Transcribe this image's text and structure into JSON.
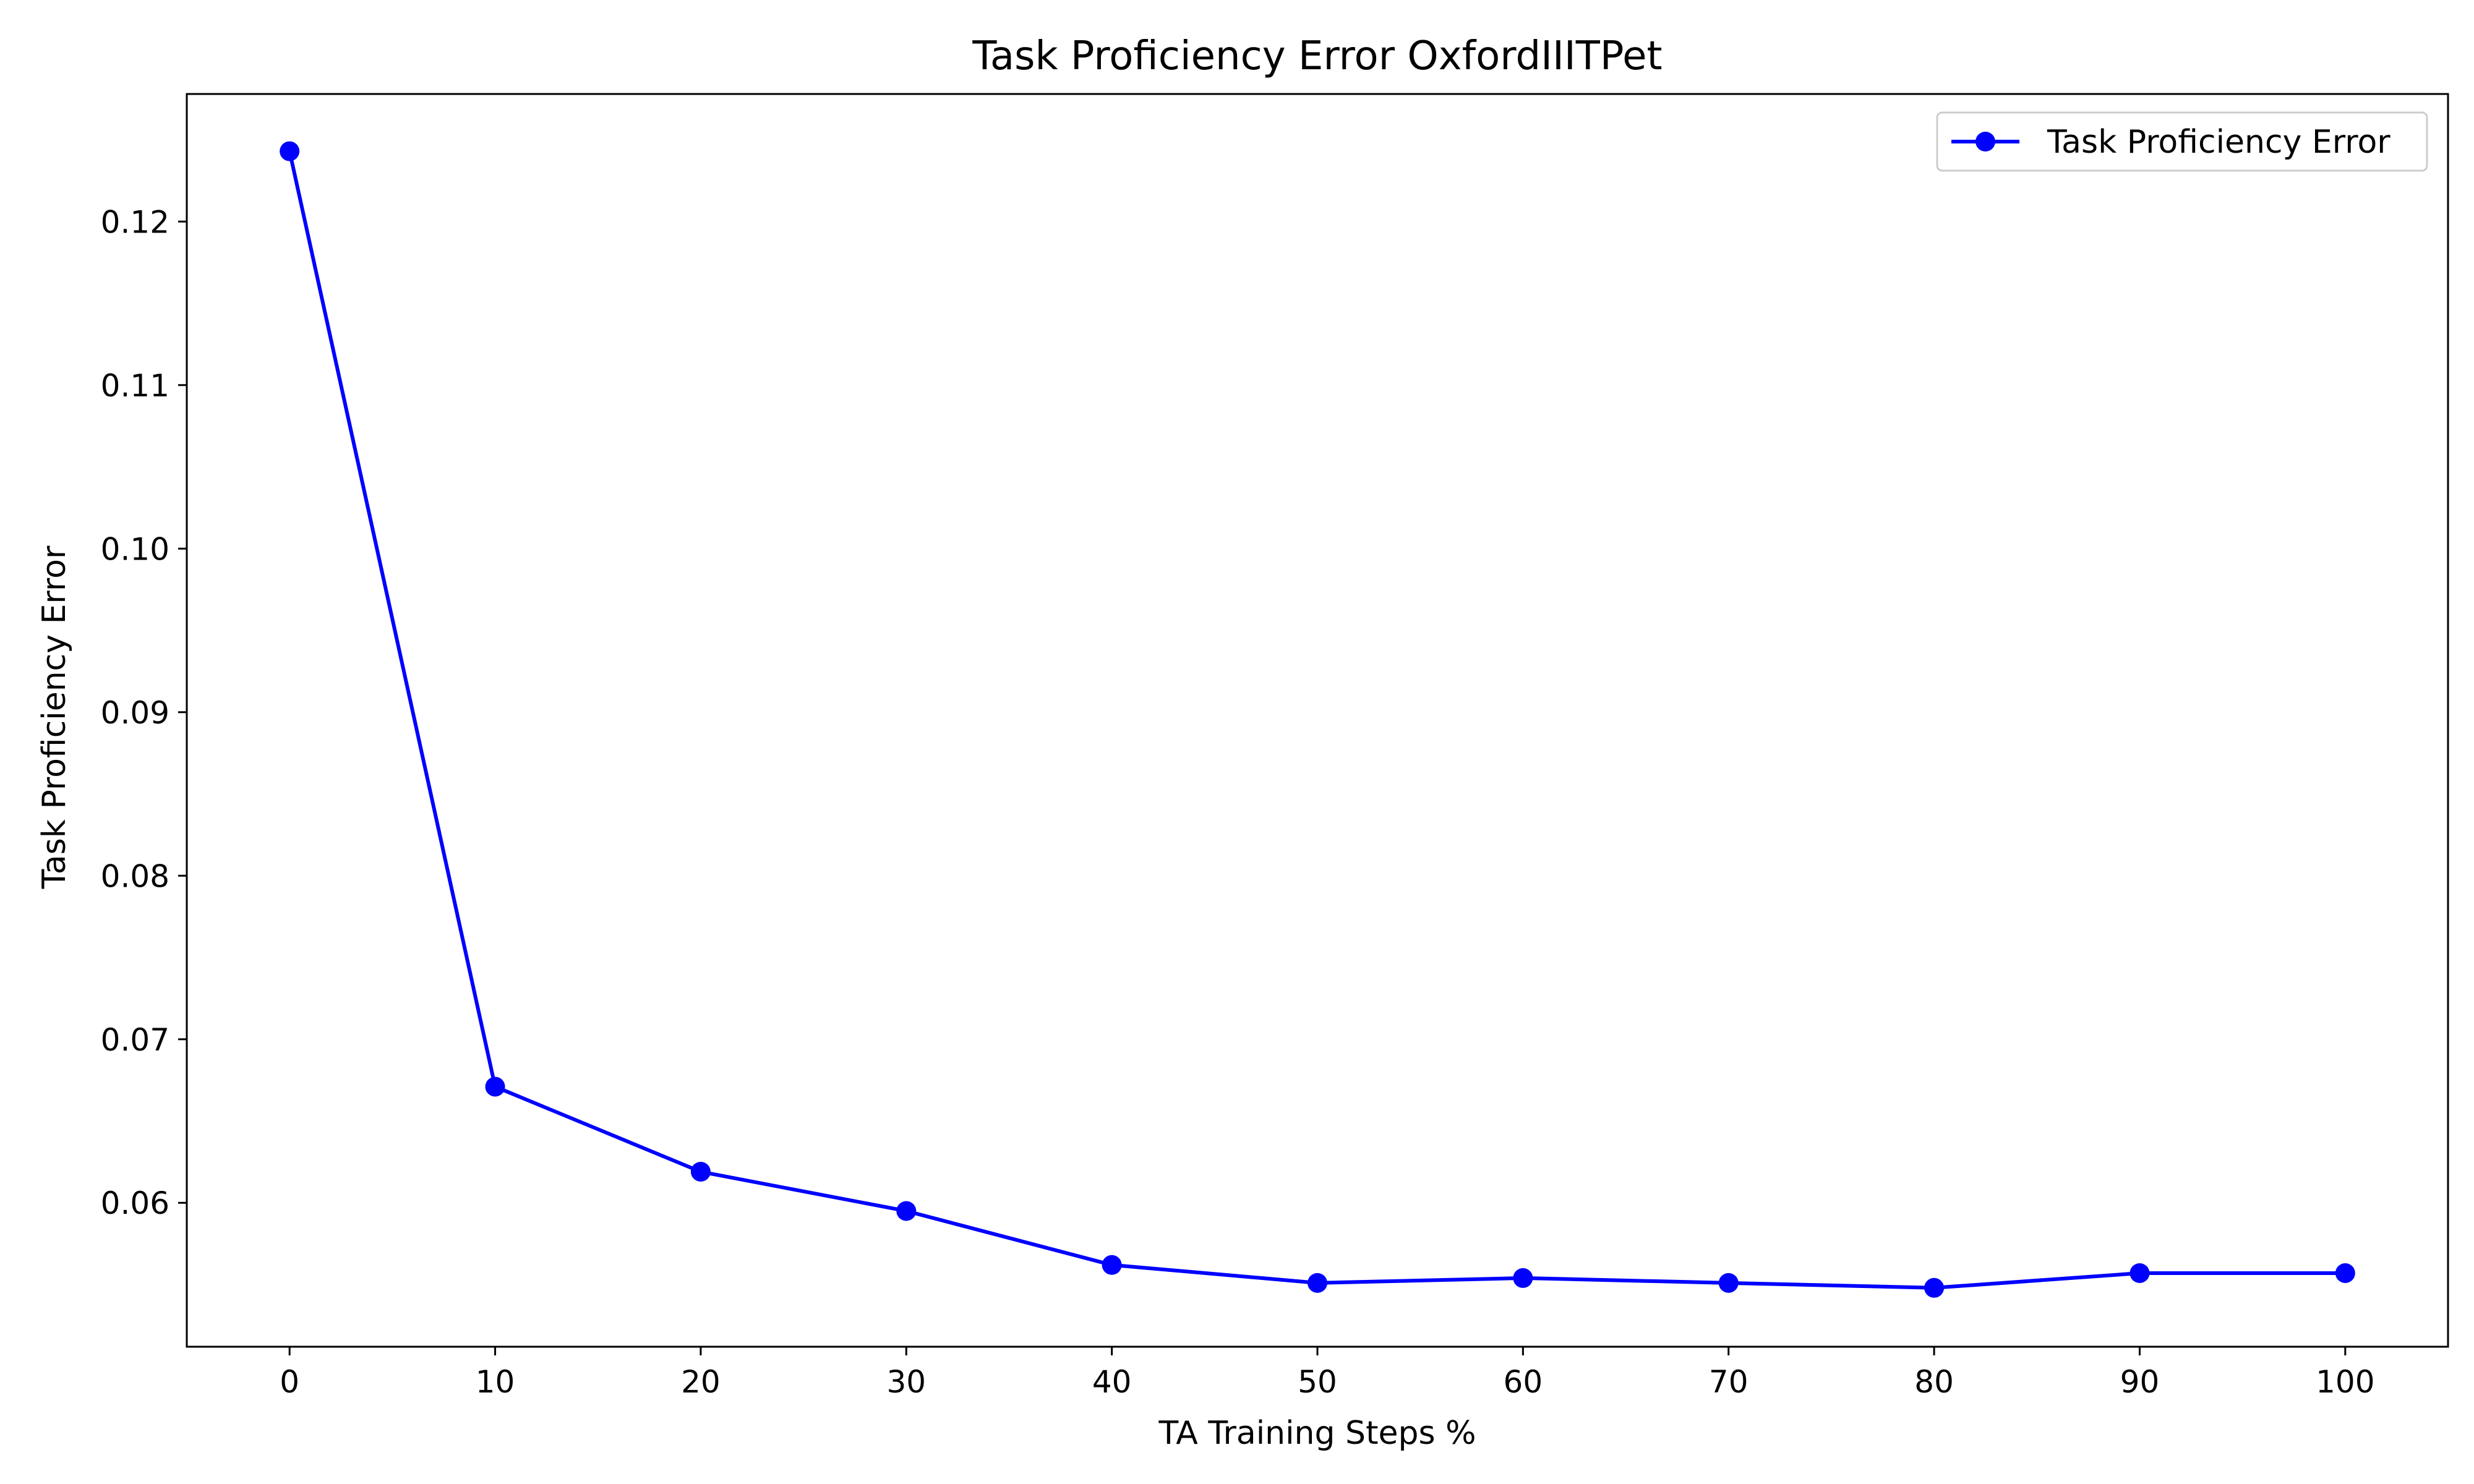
{
  "chart_data": {
    "type": "line",
    "title": "Task Proficiency Error OxfordIIITPet",
    "xlabel": "TA Training Steps %",
    "ylabel": "Task Proficiency Error",
    "x": [
      0,
      10,
      20,
      30,
      40,
      50,
      60,
      70,
      80,
      90,
      100
    ],
    "x_ticks": [
      "0",
      "10",
      "20",
      "30",
      "40",
      "50",
      "60",
      "70",
      "80",
      "90",
      "100"
    ],
    "y_ticks": [
      "0.06",
      "0.07",
      "0.08",
      "0.09",
      "0.10",
      "0.11",
      "0.12"
    ],
    "xlim": [
      -5,
      105
    ],
    "ylim": [
      0.0512,
      0.1278
    ],
    "series": [
      {
        "name": "Task Proficiency Error",
        "color": "#0000ff",
        "marker": "circle",
        "values": [
          0.1243,
          0.0671,
          0.0619,
          0.0595,
          0.0562,
          0.0551,
          0.0554,
          0.0551,
          0.0548,
          0.0557,
          0.0557
        ]
      }
    ],
    "legend": {
      "position": "top-right"
    },
    "grid": false
  }
}
